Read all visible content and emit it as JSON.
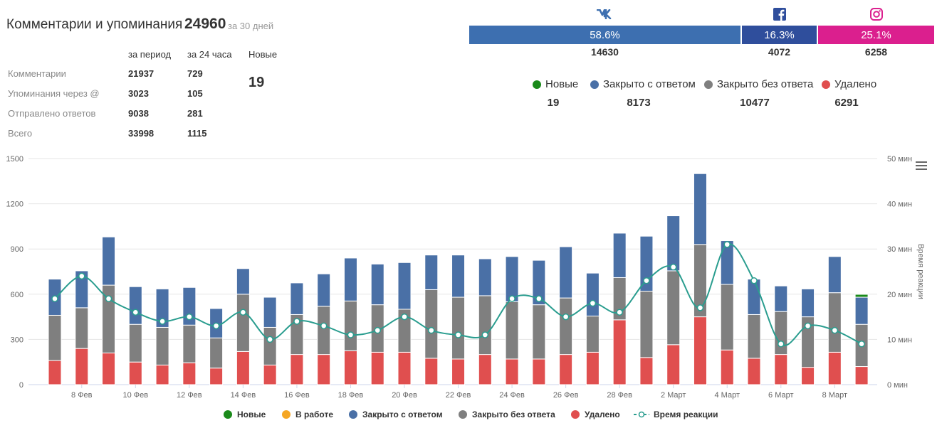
{
  "header": {
    "title": "Комментарии и упоминания",
    "total": "24960",
    "period": "за 30 дней"
  },
  "stats": {
    "col_period": "за период",
    "col_24h": "за 24 часа",
    "col_new": "Новые",
    "new_value": "19",
    "rows": [
      {
        "label": "Комментарии",
        "period": "21937",
        "day": "729"
      },
      {
        "label": "Упоминания через @",
        "period": "3023",
        "day": "105"
      },
      {
        "label": "Отправлено ответов",
        "period": "9038",
        "day": "281"
      },
      {
        "label": "Всего",
        "period": "33998",
        "day": "1115"
      }
    ]
  },
  "networks": [
    {
      "name": "vk-icon",
      "percent": "58.6%",
      "count": "14630",
      "color": "#3d6fb0"
    },
    {
      "name": "facebook-icon",
      "percent": "16.3%",
      "count": "4072",
      "color": "#2f4e9c"
    },
    {
      "name": "instagram-icon",
      "percent": "25.1%",
      "count": "6258",
      "color": "#db1f8e"
    }
  ],
  "statuses": [
    {
      "label": "Новые",
      "count": "19",
      "color": "#1a8a1a"
    },
    {
      "label": "Закрыто с ответом",
      "count": "8173",
      "color": "#4a70a6"
    },
    {
      "label": "Закрыто без ответа",
      "count": "10477",
      "color": "#7f7f7f"
    },
    {
      "label": "Удалено",
      "count": "6291",
      "color": "#e04f4f"
    }
  ],
  "legend": [
    {
      "label": "Новые",
      "color": "#1a8a1a",
      "type": "dot"
    },
    {
      "label": "В работе",
      "color": "#f5a623",
      "type": "dot"
    },
    {
      "label": "Закрыто с ответом",
      "color": "#4a70a6",
      "type": "dot"
    },
    {
      "label": "Закрыто без ответа",
      "color": "#7f7f7f",
      "type": "dot"
    },
    {
      "label": "Удалено",
      "color": "#e04f4f",
      "type": "dot"
    },
    {
      "label": "Время реакции",
      "color": "#2a9d8f",
      "type": "line"
    }
  ],
  "chart_data": {
    "type": "bar",
    "stacked": true,
    "categories": [
      "7 Фев",
      "8 Фев",
      "9 Фев",
      "10 Фев",
      "11 Фев",
      "12 Фев",
      "13 Фев",
      "14 Фев",
      "15 Фев",
      "16 Фев",
      "17 Фев",
      "18 Фев",
      "19 Фев",
      "20 Фев",
      "21 Фев",
      "22 Фев",
      "23 Фев",
      "24 Фев",
      "25 Фев",
      "26 Фев",
      "27 Фев",
      "28 Фев",
      "1 Март",
      "2 Март",
      "3 Март",
      "4 Март",
      "5 Март",
      "6 Март",
      "7 Март",
      "8 Март",
      "9 Март"
    ],
    "tick_labels": [
      "8 Фев",
      "10 Фев",
      "12 Фев",
      "14 Фев",
      "16 Фев",
      "18 Фев",
      "20 Фев",
      "22 Фев",
      "24 Фев",
      "26 Фев",
      "28 Фев",
      "2 Март",
      "4 Март",
      "6 Март",
      "8 Март"
    ],
    "series": [
      {
        "name": "Удалено",
        "color": "#e04f4f",
        "values": [
          160,
          240,
          210,
          150,
          130,
          145,
          110,
          220,
          130,
          200,
          200,
          225,
          215,
          215,
          175,
          170,
          200,
          170,
          170,
          200,
          215,
          430,
          180,
          265,
          450,
          230,
          175,
          200,
          115,
          215,
          120
        ]
      },
      {
        "name": "Закрыто без ответа",
        "color": "#7f7f7f",
        "values": [
          300,
          270,
          450,
          250,
          250,
          250,
          200,
          380,
          250,
          265,
          320,
          330,
          315,
          285,
          455,
          410,
          390,
          380,
          360,
          375,
          240,
          280,
          440,
          490,
          480,
          435,
          290,
          285,
          335,
          395,
          280
        ]
      },
      {
        "name": "Закрыто с ответом",
        "color": "#4a70a6",
        "values": [
          240,
          245,
          320,
          250,
          255,
          250,
          195,
          170,
          200,
          210,
          215,
          285,
          270,
          310,
          230,
          280,
          245,
          300,
          295,
          340,
          285,
          295,
          365,
          365,
          470,
          290,
          235,
          170,
          185,
          240,
          180
        ]
      },
      {
        "name": "Новые",
        "color": "#1a8a1a",
        "values": [
          0,
          0,
          0,
          0,
          0,
          0,
          0,
          0,
          0,
          0,
          0,
          0,
          0,
          0,
          0,
          0,
          0,
          0,
          0,
          0,
          0,
          0,
          0,
          0,
          0,
          0,
          0,
          0,
          0,
          0,
          19
        ]
      },
      {
        "name": "Время реакции",
        "color": "#2a9d8f",
        "axis": "right",
        "type": "line",
        "values": [
          19,
          24,
          19,
          16,
          14,
          15,
          13,
          16,
          10,
          14,
          13,
          11,
          12,
          15,
          12,
          11,
          11,
          19,
          19,
          15,
          18,
          16,
          23,
          26,
          17,
          31,
          23,
          9,
          13,
          12,
          9
        ]
      }
    ],
    "ylim": [
      0,
      1500
    ],
    "yticks": [
      "0",
      "300",
      "600",
      "900",
      "1200",
      "1500"
    ],
    "y2lim": [
      0,
      50
    ],
    "y2ticks": [
      "0 мин",
      "10 мин",
      "20 мин",
      "30 мин",
      "40 мин",
      "50 мин"
    ],
    "y2label": "Время реакции",
    "grid": true
  }
}
